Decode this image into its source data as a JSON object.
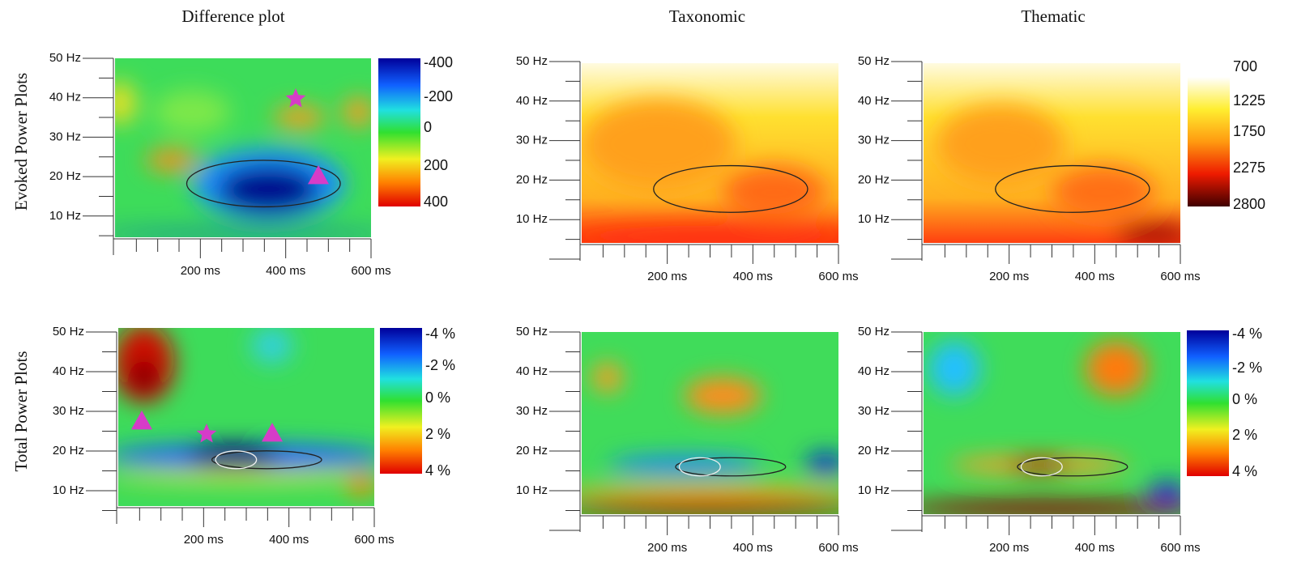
{
  "column_titles": [
    "Difference plot",
    "Taxonomic",
    "Thematic"
  ],
  "row_titles": [
    "Evoked Power Plots",
    "Total Power Plots"
  ],
  "panels": [
    {
      "yticks": [
        "50 Hz",
        "40 Hz",
        "30 Hz",
        "20 Hz",
        "10 Hz"
      ],
      "xticks": [
        "200 ms",
        "400 ms",
        "600 ms"
      ]
    },
    {
      "yticks": [
        "50 Hz",
        "40 Hz",
        "30 Hz",
        "20 Hz",
        "10 Hz"
      ],
      "xticks": [
        "200 ms",
        "400 ms",
        "600 ms"
      ]
    },
    {
      "yticks": [
        "50 Hz",
        "40 Hz",
        "30 Hz",
        "20 Hz",
        "10 Hz"
      ],
      "xticks": [
        "200 ms",
        "400 ms",
        "600 ms"
      ]
    },
    {
      "yticks": [
        "50 Hz",
        "40 Hz",
        "30 Hz",
        "20 Hz",
        "10 Hz"
      ],
      "xticks": [
        "200 ms",
        "400 ms",
        "600 ms"
      ]
    },
    {
      "yticks": [
        "50 Hz",
        "40 Hz",
        "30 Hz",
        "20 Hz",
        "10 Hz"
      ],
      "xticks": [
        "200 ms",
        "400 ms",
        "600 ms"
      ]
    },
    {
      "yticks": [
        "50 Hz",
        "40 Hz",
        "30 Hz",
        "20 Hz",
        "10 Hz"
      ],
      "xticks": [
        "200 ms",
        "400 ms",
        "600 ms"
      ]
    }
  ],
  "colorbars": [
    {
      "labels": [
        "-400",
        "-200",
        "0",
        "200",
        "400"
      ]
    },
    {
      "labels": [
        "700",
        "1225",
        "1750",
        "2275",
        "2800"
      ]
    },
    {
      "labels": [
        "-4 %",
        "-2 %",
        "0 %",
        "2 %",
        "4 %"
      ]
    },
    {
      "labels": [
        "-4 %",
        "-2 %",
        "0 %",
        "2 %",
        "4 %"
      ]
    }
  ]
}
